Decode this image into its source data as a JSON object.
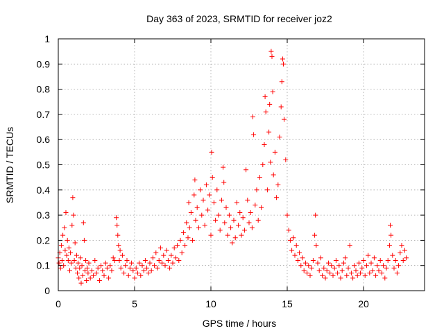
{
  "chart_data": {
    "type": "scatter",
    "title": "Day 363 of 2023, SRMTID for receiver joz2",
    "xlabel": "GPS time / hours",
    "ylabel": "SRMTID / TECUs",
    "xlim": [
      0,
      24
    ],
    "ylim": [
      0,
      1
    ],
    "xticks": [
      0,
      5,
      10,
      15,
      20
    ],
    "xtick_labels": [
      "0",
      "5",
      "10",
      "15",
      "20"
    ],
    "yticks": [
      0,
      0.1,
      0.2,
      0.3,
      0.4,
      0.5,
      0.6,
      0.7,
      0.8,
      0.9,
      1
    ],
    "ytick_labels": [
      "0",
      "0.1",
      "0.2",
      "0.3",
      "0.4",
      "0.5",
      "0.6",
      "0.7",
      "0.8",
      "0.9",
      "1"
    ],
    "grid": true,
    "marker": "+",
    "series": [
      {
        "name": "SRMTID",
        "color": "#ff0000",
        "points": [
          [
            0.0,
            0.13
          ],
          [
            0.05,
            0.11
          ],
          [
            0.1,
            0.15
          ],
          [
            0.15,
            0.09
          ],
          [
            0.2,
            0.18
          ],
          [
            0.25,
            0.12
          ],
          [
            0.3,
            0.22
          ],
          [
            0.35,
            0.1
          ],
          [
            0.4,
            0.25
          ],
          [
            0.45,
            0.16
          ],
          [
            0.5,
            0.31
          ],
          [
            0.55,
            0.14
          ],
          [
            0.6,
            0.2
          ],
          [
            0.65,
            0.12
          ],
          [
            0.7,
            0.17
          ],
          [
            0.75,
            0.08
          ],
          [
            0.8,
            0.15
          ],
          [
            0.85,
            0.11
          ],
          [
            0.9,
            0.26
          ],
          [
            0.95,
            0.37
          ],
          [
            1.0,
            0.3
          ],
          [
            1.05,
            0.12
          ],
          [
            1.1,
            0.19
          ],
          [
            1.15,
            0.09
          ],
          [
            1.2,
            0.14
          ],
          [
            1.25,
            0.07
          ],
          [
            1.3,
            0.11
          ],
          [
            1.35,
            0.05
          ],
          [
            1.4,
            0.09
          ],
          [
            1.45,
            0.13
          ],
          [
            1.5,
            0.03
          ],
          [
            1.55,
            0.1
          ],
          [
            1.6,
            0.06
          ],
          [
            1.65,
            0.27
          ],
          [
            1.7,
            0.2
          ],
          [
            1.75,
            0.08
          ],
          [
            1.8,
            0.12
          ],
          [
            1.85,
            0.04
          ],
          [
            1.9,
            0.09
          ],
          [
            1.95,
            0.07
          ],
          [
            2.0,
            0.11
          ],
          [
            2.1,
            0.05
          ],
          [
            2.2,
            0.08
          ],
          [
            2.3,
            0.06
          ],
          [
            2.4,
            0.12
          ],
          [
            2.5,
            0.07
          ],
          [
            2.6,
            0.09
          ],
          [
            2.7,
            0.04
          ],
          [
            2.8,
            0.1
          ],
          [
            2.9,
            0.08
          ],
          [
            3.0,
            0.06
          ],
          [
            3.1,
            0.11
          ],
          [
            3.2,
            0.09
          ],
          [
            3.3,
            0.05
          ],
          [
            3.4,
            0.1
          ],
          [
            3.5,
            0.08
          ],
          [
            3.6,
            0.13
          ],
          [
            3.7,
            0.12
          ],
          [
            3.8,
            0.29
          ],
          [
            3.85,
            0.26
          ],
          [
            3.9,
            0.22
          ],
          [
            3.95,
            0.18
          ],
          [
            4.0,
            0.12
          ],
          [
            4.05,
            0.16
          ],
          [
            4.1,
            0.09
          ],
          [
            4.2,
            0.14
          ],
          [
            4.3,
            0.07
          ],
          [
            4.4,
            0.1
          ],
          [
            4.5,
            0.12
          ],
          [
            4.6,
            0.06
          ],
          [
            4.7,
            0.09
          ],
          [
            4.8,
            0.11
          ],
          [
            4.9,
            0.08
          ],
          [
            5.0,
            0.05
          ],
          [
            5.1,
            0.09
          ],
          [
            5.2,
            0.07
          ],
          [
            5.3,
            0.11
          ],
          [
            5.4,
            0.06
          ],
          [
            5.5,
            0.1
          ],
          [
            5.6,
            0.08
          ],
          [
            5.7,
            0.12
          ],
          [
            5.8,
            0.09
          ],
          [
            5.9,
            0.07
          ],
          [
            6.0,
            0.11
          ],
          [
            6.1,
            0.08
          ],
          [
            6.2,
            0.13
          ],
          [
            6.3,
            0.1
          ],
          [
            6.4,
            0.15
          ],
          [
            6.5,
            0.09
          ],
          [
            6.6,
            0.12
          ],
          [
            6.7,
            0.17
          ],
          [
            6.8,
            0.11
          ],
          [
            6.9,
            0.14
          ],
          [
            7.0,
            0.1
          ],
          [
            7.1,
            0.16
          ],
          [
            7.2,
            0.12
          ],
          [
            7.3,
            0.09
          ],
          [
            7.4,
            0.14
          ],
          [
            7.5,
            0.11
          ],
          [
            7.6,
            0.17
          ],
          [
            7.7,
            0.13
          ],
          [
            7.8,
            0.18
          ],
          [
            7.9,
            0.12
          ],
          [
            8.0,
            0.2
          ],
          [
            8.1,
            0.15
          ],
          [
            8.2,
            0.23
          ],
          [
            8.3,
            0.18
          ],
          [
            8.4,
            0.27
          ],
          [
            8.5,
            0.21
          ],
          [
            8.55,
            0.35
          ],
          [
            8.6,
            0.25
          ],
          [
            8.7,
            0.31
          ],
          [
            8.8,
            0.2
          ],
          [
            8.9,
            0.38
          ],
          [
            8.95,
            0.44
          ],
          [
            9.0,
            0.28
          ],
          [
            9.1,
            0.33
          ],
          [
            9.2,
            0.25
          ],
          [
            9.3,
            0.4
          ],
          [
            9.4,
            0.3
          ],
          [
            9.5,
            0.36
          ],
          [
            9.6,
            0.26
          ],
          [
            9.7,
            0.42
          ],
          [
            9.8,
            0.32
          ],
          [
            9.9,
            0.38
          ],
          [
            10.0,
            0.22
          ],
          [
            10.05,
            0.55
          ],
          [
            10.1,
            0.45
          ],
          [
            10.2,
            0.35
          ],
          [
            10.3,
            0.28
          ],
          [
            10.4,
            0.4
          ],
          [
            10.5,
            0.3
          ],
          [
            10.6,
            0.24
          ],
          [
            10.7,
            0.36
          ],
          [
            10.8,
            0.49
          ],
          [
            10.85,
            0.43
          ],
          [
            10.9,
            0.27
          ],
          [
            11.0,
            0.33
          ],
          [
            11.1,
            0.22
          ],
          [
            11.2,
            0.3
          ],
          [
            11.3,
            0.25
          ],
          [
            11.4,
            0.19
          ],
          [
            11.5,
            0.28
          ],
          [
            11.6,
            0.21
          ],
          [
            11.7,
            0.35
          ],
          [
            11.8,
            0.26
          ],
          [
            11.9,
            0.31
          ],
          [
            12.0,
            0.22
          ],
          [
            12.1,
            0.29
          ],
          [
            12.2,
            0.24
          ],
          [
            12.3,
            0.48
          ],
          [
            12.4,
            0.36
          ],
          [
            12.5,
            0.27
          ],
          [
            12.6,
            0.31
          ],
          [
            12.7,
            0.25
          ],
          [
            12.75,
            0.69
          ],
          [
            12.8,
            0.62
          ],
          [
            12.9,
            0.34
          ],
          [
            13.0,
            0.4
          ],
          [
            13.1,
            0.28
          ],
          [
            13.2,
            0.45
          ],
          [
            13.3,
            0.33
          ],
          [
            13.4,
            0.5
          ],
          [
            13.5,
            0.58
          ],
          [
            13.55,
            0.77
          ],
          [
            13.6,
            0.71
          ],
          [
            13.7,
            0.4
          ],
          [
            13.8,
            0.63
          ],
          [
            13.85,
            0.74
          ],
          [
            13.9,
            0.51
          ],
          [
            13.95,
            0.95
          ],
          [
            14.0,
            0.93
          ],
          [
            14.05,
            0.79
          ],
          [
            14.1,
            0.46
          ],
          [
            14.2,
            0.55
          ],
          [
            14.3,
            0.37
          ],
          [
            14.4,
            0.42
          ],
          [
            14.5,
            0.61
          ],
          [
            14.6,
            0.73
          ],
          [
            14.65,
            0.83
          ],
          [
            14.7,
            0.92
          ],
          [
            14.75,
            0.9
          ],
          [
            14.8,
            0.68
          ],
          [
            14.9,
            0.52
          ],
          [
            15.0,
            0.3
          ],
          [
            15.1,
            0.24
          ],
          [
            15.2,
            0.2
          ],
          [
            15.3,
            0.16
          ],
          [
            15.4,
            0.21
          ],
          [
            15.5,
            0.14
          ],
          [
            15.6,
            0.18
          ],
          [
            15.7,
            0.12
          ],
          [
            15.8,
            0.15
          ],
          [
            15.9,
            0.1
          ],
          [
            16.0,
            0.13
          ],
          [
            16.1,
            0.08
          ],
          [
            16.2,
            0.11
          ],
          [
            16.3,
            0.07
          ],
          [
            16.4,
            0.1
          ],
          [
            16.5,
            0.06
          ],
          [
            16.6,
            0.09
          ],
          [
            16.7,
            0.12
          ],
          [
            16.8,
            0.22
          ],
          [
            16.85,
            0.3
          ],
          [
            16.9,
            0.18
          ],
          [
            17.0,
            0.11
          ],
          [
            17.1,
            0.08
          ],
          [
            17.2,
            0.13
          ],
          [
            17.3,
            0.06
          ],
          [
            17.4,
            0.09
          ],
          [
            17.5,
            0.05
          ],
          [
            17.6,
            0.08
          ],
          [
            17.7,
            0.11
          ],
          [
            17.8,
            0.07
          ],
          [
            17.9,
            0.1
          ],
          [
            18.0,
            0.06
          ],
          [
            18.1,
            0.09
          ],
          [
            18.2,
            0.12
          ],
          [
            18.3,
            0.07
          ],
          [
            18.4,
            0.1
          ],
          [
            18.5,
            0.05
          ],
          [
            18.6,
            0.08
          ],
          [
            18.7,
            0.11
          ],
          [
            18.8,
            0.13
          ],
          [
            18.9,
            0.06
          ],
          [
            19.0,
            0.09
          ],
          [
            19.1,
            0.18
          ],
          [
            19.2,
            0.07
          ],
          [
            19.3,
            0.05
          ],
          [
            19.4,
            0.1
          ],
          [
            19.5,
            0.08
          ],
          [
            19.6,
            0.06
          ],
          [
            19.7,
            0.11
          ],
          [
            19.8,
            0.07
          ],
          [
            19.9,
            0.09
          ],
          [
            20.0,
            0.12
          ],
          [
            20.1,
            0.06
          ],
          [
            20.2,
            0.1
          ],
          [
            20.3,
            0.14
          ],
          [
            20.4,
            0.07
          ],
          [
            20.5,
            0.11
          ],
          [
            20.6,
            0.08
          ],
          [
            20.7,
            0.13
          ],
          [
            20.8,
            0.06
          ],
          [
            20.9,
            0.1
          ],
          [
            21.0,
            0.08
          ],
          [
            21.1,
            0.12
          ],
          [
            21.2,
            0.07
          ],
          [
            21.3,
            0.1
          ],
          [
            21.4,
            0.05
          ],
          [
            21.5,
            0.09
          ],
          [
            21.6,
            0.12
          ],
          [
            21.7,
            0.18
          ],
          [
            21.75,
            0.26
          ],
          [
            21.8,
            0.22
          ],
          [
            21.9,
            0.14
          ],
          [
            22.0,
            0.09
          ],
          [
            22.1,
            0.12
          ],
          [
            22.2,
            0.07
          ],
          [
            22.3,
            0.1
          ],
          [
            22.4,
            0.15
          ],
          [
            22.5,
            0.18
          ],
          [
            22.6,
            0.12
          ],
          [
            22.7,
            0.16
          ],
          [
            22.8,
            0.13
          ]
        ]
      }
    ]
  }
}
